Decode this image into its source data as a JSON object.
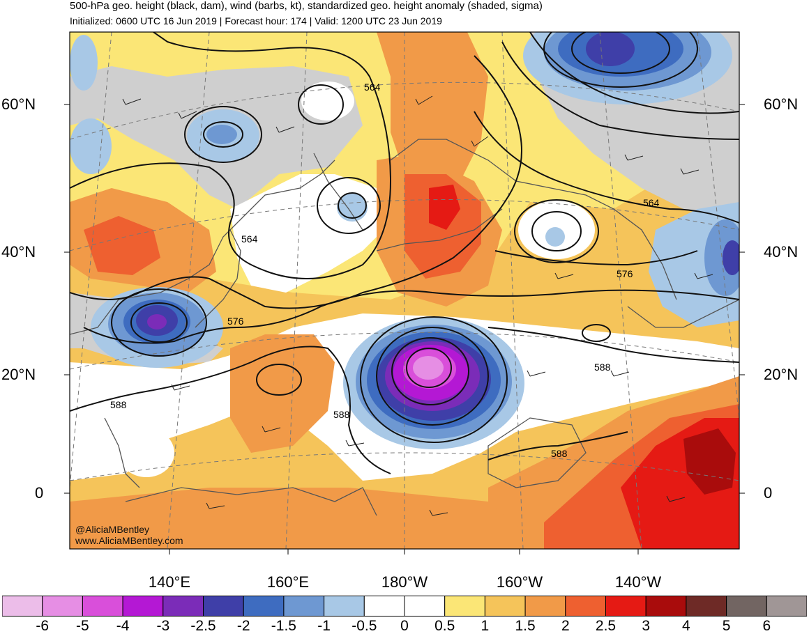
{
  "title": "500-hPa geo. height (black, dam), wind (barbs, kt), standardized geo. height anomaly (shaded, sigma)",
  "subtitle": "Initialized: 0600 UTC 16 Jun 2019 | Forecast hour: 174 | Valid: 1200 UTC 23 Jun 2019",
  "credit": {
    "handle": "@AliciaMBentley",
    "site": "www.AliciaMBentley.com"
  },
  "lat_labels": [
    "60°N",
    "40°N",
    "20°N",
    "0"
  ],
  "lon_labels": [
    "140°E",
    "160°E",
    "180°W",
    "160°W",
    "140°W"
  ],
  "contour_labels": [
    "564",
    "564",
    "564",
    "576",
    "576",
    "588",
    "588",
    "588",
    "588"
  ],
  "colorbar": {
    "ticks": [
      "-6",
      "-5",
      "-4",
      "-3",
      "-2.5",
      "-2",
      "-1.5",
      "-1",
      "-0.5",
      "0",
      "0.5",
      "1",
      "1.5",
      "2",
      "2.5",
      "3",
      "4",
      "5",
      "6"
    ],
    "colors": [
      "#ecbde9",
      "#e68ee4",
      "#d94fda",
      "#b418d4",
      "#7b2cb8",
      "#3f3fa8",
      "#3e6cc0",
      "#6e98d2",
      "#a8c8e6",
      "#ffffff",
      "#ffffff",
      "#fbe676",
      "#f5c45a",
      "#f19a48",
      "#ee6030",
      "#e51a14",
      "#a90c0c",
      "#6e2a26",
      "#726562",
      "#a09696"
    ]
  },
  "legend_colors": {
    "gray": "#cfcfcf",
    "light_blue": "#a8c8e6",
    "yellow": "#fbe676",
    "light_orange": "#f5c45a",
    "orange": "#f19a48",
    "red_orange": "#ee6030",
    "red": "#e51a14",
    "dark_red": "#a90c0c"
  }
}
